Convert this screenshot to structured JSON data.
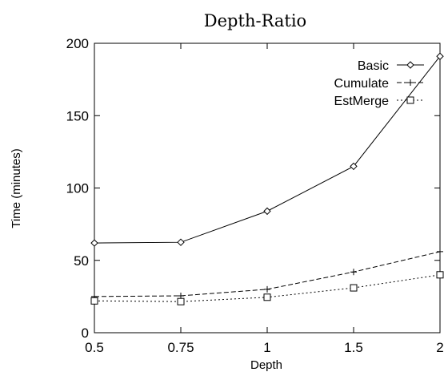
{
  "chart_data": {
    "type": "line",
    "title": "Depth-Ratio",
    "xlabel": "Depth",
    "ylabel": "Time (minutes)",
    "categories": [
      "0.5",
      "0.75",
      "1",
      "1.5",
      "2"
    ],
    "ylim": [
      0,
      200
    ],
    "yticks": [
      "0",
      "50",
      "100",
      "150",
      "200"
    ],
    "legend_position": "top-right",
    "series": [
      {
        "name": "Basic",
        "values": [
          62,
          62.5,
          84,
          115,
          191
        ],
        "marker": "diamond",
        "dash": "solid"
      },
      {
        "name": "Cumulate",
        "values": [
          25,
          25.5,
          30,
          42,
          56
        ],
        "marker": "plus",
        "dash": "dashed"
      },
      {
        "name": "EstMerge",
        "values": [
          22,
          21.5,
          24.5,
          31,
          40
        ],
        "marker": "square",
        "dash": "dotted"
      }
    ]
  }
}
